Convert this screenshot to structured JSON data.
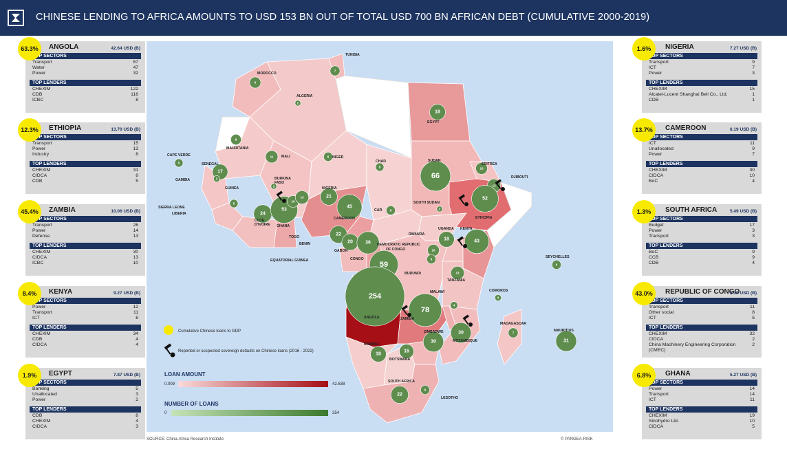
{
  "header": {
    "title": "CHINESE LENDING TO AFRICA AMOUNTS TO USD 153 BN OUT OF TOTAL USD 700 BN AFRICAN DEBT (CUMULATIVE 2000-2019)"
  },
  "cards_left": [
    {
      "pct": "63.3%",
      "name": "ANGOLA",
      "value": "42.64 USD (B)",
      "sectors": [
        [
          "Transport",
          "67"
        ],
        [
          "Water",
          "47"
        ],
        [
          "Power",
          "32"
        ]
      ],
      "lenders": [
        [
          "CHEXIM",
          "122"
        ],
        [
          "CDB",
          "116"
        ],
        [
          "ICBC",
          "8"
        ]
      ]
    },
    {
      "pct": "12.3%",
      "name": "ETHIOPIA",
      "value": "13.70 USD (B)",
      "sectors": [
        [
          "Transport",
          "15"
        ],
        [
          "Power",
          "13"
        ],
        [
          "Industry",
          "8"
        ]
      ],
      "lenders": [
        [
          "CHEXIM",
          "31"
        ],
        [
          "CIDCA",
          "8"
        ],
        [
          "CDB",
          "5"
        ]
      ]
    },
    {
      "pct": "45.4%",
      "name": "ZAMBIA",
      "value": "10.06 USD (B)",
      "sectors": [
        [
          "Transport",
          "26"
        ],
        [
          "Power",
          "14"
        ],
        [
          "Defense",
          "13"
        ]
      ],
      "lenders": [
        [
          "CHEXIM",
          "30"
        ],
        [
          "CIDCA",
          "13"
        ],
        [
          "ICBC",
          "10"
        ]
      ]
    },
    {
      "pct": "8.4%",
      "name": "KENYA",
      "value": "9.27 USD (B)",
      "sectors": [
        [
          "Power",
          "12"
        ],
        [
          "Transport",
          "11"
        ],
        [
          "ICT",
          "6"
        ]
      ],
      "lenders": [
        [
          "CHEXIM",
          "34"
        ],
        [
          "CDB",
          "4"
        ],
        [
          "CIDCA",
          "4"
        ]
      ]
    },
    {
      "pct": "1.9%",
      "name": "EGYPT",
      "value": "7.87 USD (B)",
      "sectors": [
        [
          "Banking",
          "5"
        ],
        [
          "Unallocated",
          "3"
        ],
        [
          "Power",
          "2"
        ]
      ],
      "lenders": [
        [
          "CDB",
          "8"
        ],
        [
          "CHEXIM",
          "4"
        ],
        [
          "CIDCA",
          "3"
        ]
      ]
    }
  ],
  "cards_right": [
    {
      "pct": "1.6%",
      "name": "NIGERIA",
      "value": "7.27 USD (B)",
      "sectors": [
        [
          "Transport",
          "9"
        ],
        [
          "ICT",
          "7"
        ],
        [
          "Power",
          "3"
        ]
      ],
      "lenders": [
        [
          "CHEXIM",
          "15"
        ],
        [
          "Alcatel-Lucent Shanghai Bell Co., Ltd.",
          "1"
        ],
        [
          "CDB",
          "1"
        ]
      ]
    },
    {
      "pct": "13.7%",
      "name": "CAMEROON",
      "value": "6.19 USD (B)",
      "sectors": [
        [
          "ICT",
          "11"
        ],
        [
          "Unallocated",
          "9"
        ],
        [
          "Power",
          "7"
        ]
      ],
      "lenders": [
        [
          "CHEXIM",
          "30"
        ],
        [
          "CIDCA",
          "10"
        ],
        [
          "BoC",
          "4"
        ]
      ]
    },
    {
      "pct": "1.3%",
      "name": "SOUTH AFRICA",
      "value": "5.49 USD (B)",
      "sectors": [
        [
          "Budget",
          "17"
        ],
        [
          "Power",
          "3"
        ],
        [
          "Transport",
          "3"
        ]
      ],
      "lenders": [
        [
          "BoC",
          "9"
        ],
        [
          "CCB",
          "9"
        ],
        [
          "CDB",
          "4"
        ]
      ]
    },
    {
      "pct": "43.0%",
      "name": "REPUBLIC OF CONGO",
      "value": "5.39 USD (B)",
      "sectors": [
        [
          "Transport",
          "11"
        ],
        [
          "Other social",
          "8"
        ],
        [
          "ICT",
          "5"
        ]
      ],
      "lenders": [
        [
          "CHEXIM",
          "32"
        ],
        [
          "CIDCA",
          "2"
        ],
        [
          "China Machinery Engineering Corporation (CMEC)",
          "2"
        ]
      ]
    },
    {
      "pct": "6.8%",
      "name": "GHANA",
      "value": "5.27 USD (B)",
      "sectors": [
        [
          "Power",
          "14"
        ],
        [
          "Transport",
          "14"
        ],
        [
          "ICT",
          "11"
        ]
      ],
      "lenders": [
        [
          "CHEXIM",
          "19"
        ],
        [
          "Sinohydro Ltd.",
          "10"
        ],
        [
          "CIDCA",
          "5"
        ]
      ]
    }
  ],
  "labels": {
    "top_sectors": "TOP SECTORS",
    "top_lenders": "TOP LENDERS"
  },
  "map": {
    "country_labels": [
      {
        "name": "TUNISIA"
      },
      {
        "name": "MOROCCO"
      },
      {
        "name": "ALGERIA"
      },
      {
        "name": "EGYPT"
      },
      {
        "name": "MAURITANIA"
      },
      {
        "name": "MALI"
      },
      {
        "name": "NIGER"
      },
      {
        "name": "CHAD"
      },
      {
        "name": "SUDAN"
      },
      {
        "name": "ERITREA"
      },
      {
        "name": "DJIBOUTI"
      },
      {
        "name": "CAPE VERDE"
      },
      {
        "name": "SENEGAL"
      },
      {
        "name": "GAMBIA"
      },
      {
        "name": "GUINEA"
      },
      {
        "name": "BURKINA FASO"
      },
      {
        "name": "NIGERIA"
      },
      {
        "name": "COTE D'IVOIRE"
      },
      {
        "name": "SIERRA LEONE"
      },
      {
        "name": "LIBERIA"
      },
      {
        "name": "GHANA"
      },
      {
        "name": "TOGO"
      },
      {
        "name": "BENIN"
      },
      {
        "name": "CAMEROON"
      },
      {
        "name": "CAR"
      },
      {
        "name": "SOUTH SUDAN"
      },
      {
        "name": "ETHIOPIA"
      },
      {
        "name": "EQUATORIAL GUINEA"
      },
      {
        "name": "GABON"
      },
      {
        "name": "CONGO"
      },
      {
        "name": "DEMOCRATIC REPUBLIC OF CONGO"
      },
      {
        "name": "RWANDA"
      },
      {
        "name": "UGANDA"
      },
      {
        "name": "KENYA"
      },
      {
        "name": "BURUNDI"
      },
      {
        "name": "TANZANIA"
      },
      {
        "name": "SEYCHELLES"
      },
      {
        "name": "COMOROS"
      },
      {
        "name": "ANGOLA"
      },
      {
        "name": "ZAMBIA"
      },
      {
        "name": "MALAWI"
      },
      {
        "name": "MADAGASCAR"
      },
      {
        "name": "ZIMBABWE"
      },
      {
        "name": "MOZAMBIQUE"
      },
      {
        "name": "MAURITIUS"
      },
      {
        "name": "NAMIBIA"
      },
      {
        "name": "BOTSWANA"
      },
      {
        "name": "SOUTH AFRICA"
      },
      {
        "name": "LESOTHO"
      }
    ],
    "bubbles": [
      {
        "country": "Tunisia",
        "loans": 7
      },
      {
        "country": "Morocco",
        "loans": 9
      },
      {
        "country": "Algeria",
        "loans": 2
      },
      {
        "country": "Egypt",
        "loans": 18
      },
      {
        "country": "Mauritania",
        "loans": 8
      },
      {
        "country": "Mali",
        "loans": 11
      },
      {
        "country": "Niger",
        "loans": 6
      },
      {
        "country": "Chad",
        "loans": 5
      },
      {
        "country": "Sudan",
        "loans": 66
      },
      {
        "country": "Eritrea",
        "loans": 10
      },
      {
        "country": "Djibouti",
        "loans": 13
      },
      {
        "country": "Cape Verde",
        "loans": 5
      },
      {
        "country": "Senegal",
        "loans": 17
      },
      {
        "country": "Gambia",
        "loans": 3
      },
      {
        "country": "Guinea",
        "loans": 3
      },
      {
        "country": "Sierra Leone",
        "loans": 5
      },
      {
        "country": "Burkina Faso",
        "loans": 2
      },
      {
        "country": "Cote d'Ivoire",
        "loans": 24
      },
      {
        "country": "Ghana",
        "loans": 53
      },
      {
        "country": "Togo",
        "loans": 10
      },
      {
        "country": "Benin",
        "loans": 13
      },
      {
        "country": "Nigeria",
        "loans": 21
      },
      {
        "country": "Cameroon",
        "loans": 45
      },
      {
        "country": "CAR",
        "loans": 6
      },
      {
        "country": "South Sudan",
        "loans": 2
      },
      {
        "country": "Ethiopia",
        "loans": 52
      },
      {
        "country": "Equatorial Guinea",
        "loans": 22
      },
      {
        "country": "Gabon",
        "loans": 20
      },
      {
        "country": "Congo",
        "loans": 36
      },
      {
        "country": "DR Congo",
        "loans": 59
      },
      {
        "country": "Uganda",
        "loans": 18
      },
      {
        "country": "Rwanda",
        "loans": 10
      },
      {
        "country": "Burundi",
        "loans": 6
      },
      {
        "country": "Kenya",
        "loans": 43
      },
      {
        "country": "Tanzania",
        "loans": 13
      },
      {
        "country": "Seychelles",
        "loans": 6
      },
      {
        "country": "Comoros",
        "loans": 3
      },
      {
        "country": "Angola",
        "loans": 254
      },
      {
        "country": "Malawi",
        "loans": 4
      },
      {
        "country": "Zambia",
        "loans": 78
      },
      {
        "country": "Mozambique",
        "loans": 30
      },
      {
        "country": "Zimbabwe",
        "loans": 30
      },
      {
        "country": "Madagascar",
        "loans": 7
      },
      {
        "country": "Mauritius",
        "loans": 31
      },
      {
        "country": "Namibia",
        "loans": 18
      },
      {
        "country": "Botswana",
        "loans": 15
      },
      {
        "country": "South Africa",
        "loans": 22
      },
      {
        "country": "Lesotho",
        "loans": 6
      }
    ],
    "legend": {
      "gdp": "Cumulative Chinese loans to GDP",
      "default": "Reported or suspected sovereign defaults on Chinese loans (2016 - 2022)",
      "loan_amount_title": "LOAN AMOUNT",
      "loan_min": "0.009",
      "loan_max": "42.638",
      "loans_title": "NUMBER OF LOANS",
      "loans_min": "0",
      "loans_max": "254"
    },
    "colors": {
      "ocean": "#c9ddf3",
      "loan_low": "#f9dada",
      "loan_high": "#a50f15",
      "bubble": "#5e8d4e",
      "nodata": "#ffffff",
      "gdp_marker": "#f7ea00"
    }
  },
  "footer": {
    "source": "SOURCE: China-Africa Research Institute",
    "copyright": "© PANGEA-RISK"
  }
}
